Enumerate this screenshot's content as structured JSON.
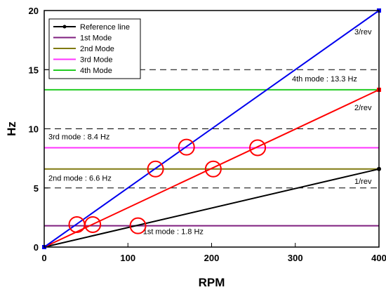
{
  "chart_data": {
    "type": "line",
    "xlabel": "RPM",
    "ylabel": "Hz",
    "xlim": [
      0,
      400
    ],
    "ylim": [
      0,
      20
    ],
    "x_ticks": [
      0,
      100,
      200,
      300,
      400
    ],
    "y_ticks": [
      0,
      5,
      10,
      15,
      20
    ],
    "grid": "dashed horizontal lines at 5, 10, 15",
    "legend_position": "top-left",
    "series": [
      {
        "name": "Reference line",
        "color": "#000000",
        "x": [
          0,
          400
        ],
        "y": [
          0,
          6.6
        ],
        "marker": "circle"
      },
      {
        "name": "1st Mode",
        "color": "#7f1f7f",
        "x": [
          0,
          400
        ],
        "y": [
          1.8,
          1.8
        ]
      },
      {
        "name": "2nd Mode",
        "color": "#807a10",
        "x": [
          0,
          400
        ],
        "y": [
          6.6,
          6.6
        ]
      },
      {
        "name": "3rd Mode",
        "color": "#ff33ff",
        "x": [
          0,
          400
        ],
        "y": [
          8.4,
          8.4
        ]
      },
      {
        "name": "4th Mode",
        "color": "#22cc22",
        "x": [
          0,
          400
        ],
        "y": [
          13.3,
          13.3
        ]
      }
    ],
    "excitation_lines": [
      {
        "label": "1/rev",
        "color": "#000000",
        "x": [
          0,
          400
        ],
        "y": [
          0,
          6.6
        ]
      },
      {
        "label": "2/rev",
        "color": "#ff0000",
        "x": [
          0,
          400
        ],
        "y": [
          0,
          13.3
        ]
      },
      {
        "label": "3/rev",
        "color": "#0000ee",
        "x": [
          0,
          400
        ],
        "y": [
          0,
          20
        ]
      }
    ],
    "mode_annotations": [
      {
        "text": "1st mode : 1.8 Hz",
        "x": 118,
        "y": 1.1
      },
      {
        "text": "2nd mode : 6.6 Hz",
        "x": 5,
        "y": 5.6
      },
      {
        "text": "3rd mode : 8.4 Hz",
        "x": 5,
        "y": 9.1
      },
      {
        "text": "4th mode : 13.3 Hz",
        "x": 296,
        "y": 14.0
      }
    ],
    "crossing_markers": [
      {
        "x": 39,
        "y": 1.9
      },
      {
        "x": 58,
        "y": 1.9
      },
      {
        "x": 112,
        "y": 1.8
      },
      {
        "x": 133,
        "y": 6.6
      },
      {
        "x": 170,
        "y": 8.45
      },
      {
        "x": 202,
        "y": 6.6
      },
      {
        "x": 255,
        "y": 8.4
      }
    ],
    "marker_color": "#ff0000"
  }
}
